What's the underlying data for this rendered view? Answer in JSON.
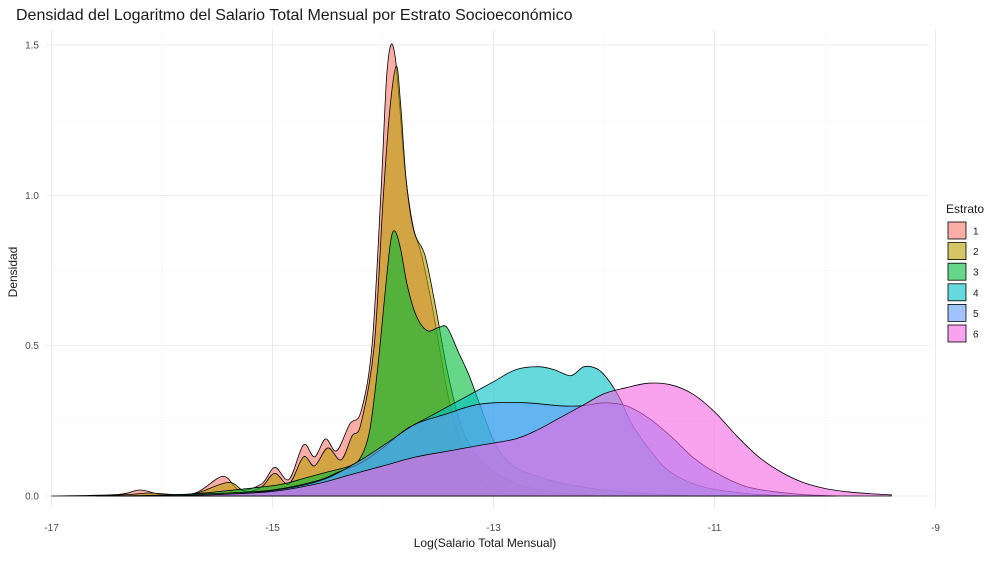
{
  "chart_data": {
    "type": "area",
    "subtype": "density",
    "title": "Densidad del Logaritmo del Salario Total Mensual por Estrato Socioeconómico",
    "xlabel": "Log(Salario Total Mensual)",
    "ylabel": "Densidad",
    "xlim": [
      -17.05,
      -9.05
    ],
    "ylim": [
      -0.04,
      1.55
    ],
    "x_ticks": [
      -17,
      -15,
      -13,
      -11,
      -9
    ],
    "y_ticks": [
      0.0,
      0.5,
      1.0,
      1.5
    ],
    "y_tick_labels": [
      "0.0",
      "0.5",
      "1.0",
      "1.5"
    ],
    "grid": true,
    "legend": {
      "title": "Estrato",
      "position": "right"
    },
    "series": [
      {
        "name": "1",
        "color": "#F8766D",
        "points": [
          [
            -17.0,
            0
          ],
          [
            -16.4,
            0.005
          ],
          [
            -16.2,
            0.02
          ],
          [
            -16.0,
            0.005
          ],
          [
            -15.7,
            0.01
          ],
          [
            -15.45,
            0.065
          ],
          [
            -15.3,
            0.02
          ],
          [
            -15.1,
            0.04
          ],
          [
            -14.98,
            0.095
          ],
          [
            -14.85,
            0.055
          ],
          [
            -14.72,
            0.17
          ],
          [
            -14.62,
            0.13
          ],
          [
            -14.52,
            0.19
          ],
          [
            -14.42,
            0.15
          ],
          [
            -14.3,
            0.24
          ],
          [
            -14.2,
            0.28
          ],
          [
            -14.1,
            0.5
          ],
          [
            -14.02,
            1.0
          ],
          [
            -13.97,
            1.38
          ],
          [
            -13.93,
            1.5
          ],
          [
            -13.89,
            1.46
          ],
          [
            -13.85,
            1.3
          ],
          [
            -13.8,
            1.08
          ],
          [
            -13.73,
            0.9
          ],
          [
            -13.65,
            0.8
          ],
          [
            -13.55,
            0.62
          ],
          [
            -13.42,
            0.35
          ],
          [
            -13.3,
            0.18
          ],
          [
            -13.15,
            0.07
          ],
          [
            -13.0,
            0.02
          ],
          [
            -12.8,
            0.004
          ],
          [
            -12.6,
            0
          ]
        ]
      },
      {
        "name": "2",
        "color": "#B79F00",
        "points": [
          [
            -16.6,
            0
          ],
          [
            -16.3,
            0.005
          ],
          [
            -16.1,
            0.01
          ],
          [
            -15.9,
            0.005
          ],
          [
            -15.7,
            0.008
          ],
          [
            -15.4,
            0.045
          ],
          [
            -15.25,
            0.015
          ],
          [
            -15.1,
            0.03
          ],
          [
            -14.98,
            0.075
          ],
          [
            -14.85,
            0.04
          ],
          [
            -14.72,
            0.13
          ],
          [
            -14.62,
            0.1
          ],
          [
            -14.5,
            0.16
          ],
          [
            -14.38,
            0.12
          ],
          [
            -14.28,
            0.2
          ],
          [
            -14.2,
            0.24
          ],
          [
            -14.08,
            0.5
          ],
          [
            -14.0,
            0.98
          ],
          [
            -13.94,
            1.28
          ],
          [
            -13.88,
            1.43
          ],
          [
            -13.84,
            1.3
          ],
          [
            -13.79,
            1.05
          ],
          [
            -13.72,
            0.88
          ],
          [
            -13.62,
            0.8
          ],
          [
            -13.52,
            0.62
          ],
          [
            -13.42,
            0.42
          ],
          [
            -13.3,
            0.24
          ],
          [
            -13.15,
            0.13
          ],
          [
            -12.95,
            0.07
          ],
          [
            -12.7,
            0.03
          ],
          [
            -12.4,
            0.01
          ],
          [
            -12.0,
            0
          ]
        ]
      },
      {
        "name": "3",
        "color": "#00BA38",
        "points": [
          [
            -16.4,
            0
          ],
          [
            -16.0,
            0.003
          ],
          [
            -15.7,
            0.008
          ],
          [
            -15.4,
            0.018
          ],
          [
            -15.1,
            0.03
          ],
          [
            -14.9,
            0.04
          ],
          [
            -14.7,
            0.06
          ],
          [
            -14.5,
            0.08
          ],
          [
            -14.3,
            0.1
          ],
          [
            -14.2,
            0.13
          ],
          [
            -14.12,
            0.22
          ],
          [
            -14.05,
            0.42
          ],
          [
            -13.98,
            0.68
          ],
          [
            -13.93,
            0.85
          ],
          [
            -13.89,
            0.88
          ],
          [
            -13.84,
            0.82
          ],
          [
            -13.78,
            0.7
          ],
          [
            -13.7,
            0.6
          ],
          [
            -13.6,
            0.55
          ],
          [
            -13.5,
            0.56
          ],
          [
            -13.42,
            0.56
          ],
          [
            -13.32,
            0.48
          ],
          [
            -13.22,
            0.4
          ],
          [
            -13.12,
            0.3
          ],
          [
            -12.98,
            0.17
          ],
          [
            -12.82,
            0.1
          ],
          [
            -12.6,
            0.065
          ],
          [
            -12.35,
            0.04
          ],
          [
            -12.0,
            0.02
          ],
          [
            -11.6,
            0.008
          ],
          [
            -11.2,
            0
          ]
        ]
      },
      {
        "name": "4",
        "color": "#00BFC4",
        "points": [
          [
            -16.2,
            0
          ],
          [
            -15.8,
            0.005
          ],
          [
            -15.4,
            0.01
          ],
          [
            -15.0,
            0.02
          ],
          [
            -14.6,
            0.05
          ],
          [
            -14.4,
            0.08
          ],
          [
            -14.2,
            0.11
          ],
          [
            -14.0,
            0.16
          ],
          [
            -13.8,
            0.22
          ],
          [
            -13.6,
            0.26
          ],
          [
            -13.4,
            0.3
          ],
          [
            -13.2,
            0.34
          ],
          [
            -13.0,
            0.38
          ],
          [
            -12.8,
            0.42
          ],
          [
            -12.6,
            0.43
          ],
          [
            -12.45,
            0.42
          ],
          [
            -12.3,
            0.4
          ],
          [
            -12.18,
            0.43
          ],
          [
            -12.05,
            0.42
          ],
          [
            -11.95,
            0.38
          ],
          [
            -11.85,
            0.32
          ],
          [
            -11.75,
            0.24
          ],
          [
            -11.6,
            0.16
          ],
          [
            -11.4,
            0.08
          ],
          [
            -11.1,
            0.03
          ],
          [
            -10.7,
            0.008
          ],
          [
            -10.3,
            0
          ]
        ]
      },
      {
        "name": "5",
        "color": "#619CFF",
        "points": [
          [
            -16.0,
            0
          ],
          [
            -15.6,
            0.003
          ],
          [
            -15.2,
            0.01
          ],
          [
            -14.8,
            0.03
          ],
          [
            -14.5,
            0.06
          ],
          [
            -14.2,
            0.12
          ],
          [
            -13.95,
            0.18
          ],
          [
            -13.7,
            0.24
          ],
          [
            -13.45,
            0.27
          ],
          [
            -13.2,
            0.3
          ],
          [
            -13.0,
            0.31
          ],
          [
            -12.7,
            0.31
          ],
          [
            -12.4,
            0.3
          ],
          [
            -12.2,
            0.3
          ],
          [
            -12.0,
            0.31
          ],
          [
            -11.8,
            0.3
          ],
          [
            -11.6,
            0.26
          ],
          [
            -11.4,
            0.2
          ],
          [
            -11.2,
            0.13
          ],
          [
            -11.0,
            0.08
          ],
          [
            -10.7,
            0.03
          ],
          [
            -10.3,
            0.008
          ],
          [
            -9.9,
            0
          ]
        ]
      },
      {
        "name": "6",
        "color": "#F564E3",
        "points": [
          [
            -16.0,
            0
          ],
          [
            -15.5,
            0.005
          ],
          [
            -15.0,
            0.015
          ],
          [
            -14.6,
            0.04
          ],
          [
            -14.3,
            0.07
          ],
          [
            -14.0,
            0.1
          ],
          [
            -13.7,
            0.13
          ],
          [
            -13.4,
            0.15
          ],
          [
            -13.1,
            0.17
          ],
          [
            -12.8,
            0.19
          ],
          [
            -12.6,
            0.22
          ],
          [
            -12.4,
            0.26
          ],
          [
            -12.2,
            0.3
          ],
          [
            -12.0,
            0.34
          ],
          [
            -11.8,
            0.36
          ],
          [
            -11.6,
            0.375
          ],
          [
            -11.4,
            0.37
          ],
          [
            -11.2,
            0.34
          ],
          [
            -11.0,
            0.28
          ],
          [
            -10.8,
            0.2
          ],
          [
            -10.6,
            0.13
          ],
          [
            -10.4,
            0.08
          ],
          [
            -10.2,
            0.045
          ],
          [
            -10.0,
            0.025
          ],
          [
            -9.8,
            0.014
          ],
          [
            -9.6,
            0.008
          ],
          [
            -9.4,
            0.004
          ]
        ]
      }
    ]
  }
}
